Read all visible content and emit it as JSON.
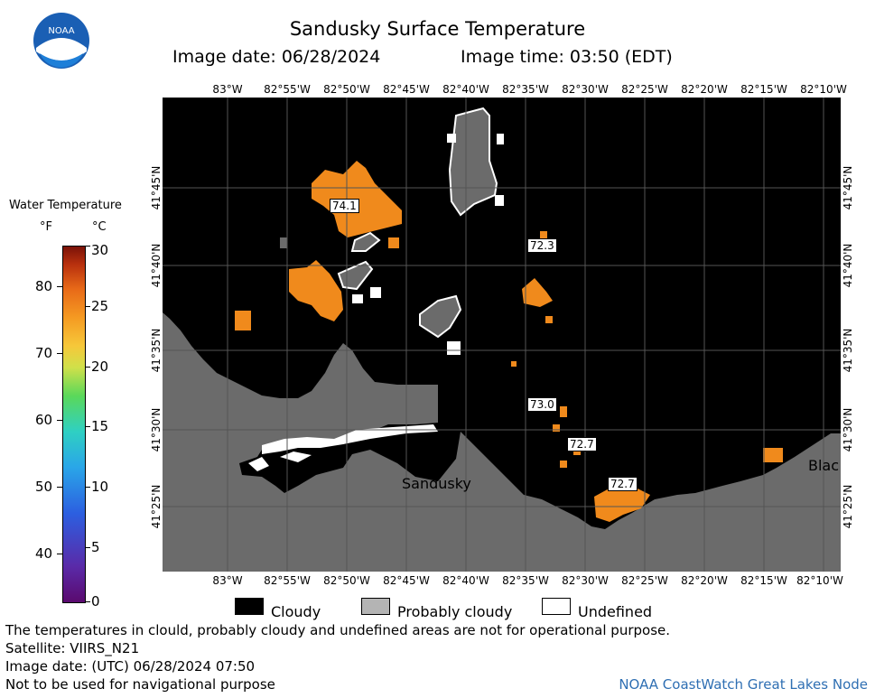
{
  "header": {
    "title": "Sandusky Surface Temperature",
    "image_date": "Image date: 06/28/2024",
    "image_time": "Image time: 03:50 (EDT)"
  },
  "logo": {
    "text": "NOAA"
  },
  "colorbar": {
    "title": "Water Temperature",
    "unit_f": "°F",
    "unit_c": "°C",
    "f_ticks": [
      "80",
      "70",
      "60",
      "50",
      "40"
    ],
    "c_ticks": [
      "30",
      "25",
      "20",
      "15",
      "10",
      "5",
      "0"
    ]
  },
  "axes": {
    "lon_labels": [
      "83°W",
      "82°55'W",
      "82°50'W",
      "82°45'W",
      "82°40'W",
      "82°35'W",
      "82°30'W",
      "82°25'W",
      "82°20'W",
      "82°15'W",
      "82°10'W"
    ],
    "lat_labels": [
      "41°45'N",
      "41°40'N",
      "41°35'N",
      "41°30'N",
      "41°25'N"
    ]
  },
  "map": {
    "temp_labels": [
      "74.1",
      "72.3",
      "73.0",
      "72.7",
      "72.7"
    ],
    "places": [
      "Sandusky",
      "Blac"
    ],
    "colors": {
      "water_cloud": "#000000",
      "land": "#6b6b6b",
      "warm": "#f08a1c",
      "undefined": "#ffffff"
    }
  },
  "legend": {
    "cloudy": "Cloudy",
    "probably_cloudy": "Probably cloudy",
    "undefined": "Undefined"
  },
  "footer": {
    "disclaimer": "The temperatures in clould, probably cloudy and undefined areas are not for operational purpose.",
    "satellite": "Satellite: VIIRS_N21",
    "utc_date": "Image date: (UTC) 06/28/2024  07:50",
    "nav_warning": "Not to be used for navigational purpose",
    "credit": "NOAA CoastWatch Great Lakes Node"
  }
}
